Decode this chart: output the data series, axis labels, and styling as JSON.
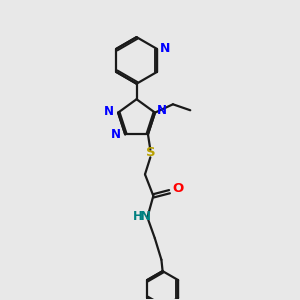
{
  "bg_color": "#e8e8e8",
  "bond_color": "#1a1a1a",
  "N_color": "#0000ff",
  "O_color": "#ff0000",
  "S_color": "#b8a000",
  "NH_color": "#008080",
  "linewidth": 1.6,
  "figsize": [
    3.0,
    3.0
  ],
  "dpi": 100,
  "xlim": [
    0,
    10
  ],
  "ylim": [
    0,
    10
  ]
}
